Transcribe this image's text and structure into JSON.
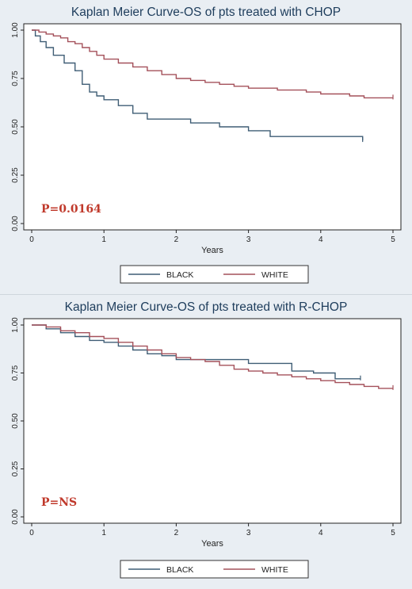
{
  "chart_data": [
    {
      "type": "line",
      "title": "Kaplan Meier Curve-OS of pts treated with CHOP",
      "xlabel": "Years",
      "ylabel": "",
      "xlim": [
        0,
        5
      ],
      "ylim": [
        0,
        1
      ],
      "x_ticks": [
        "0",
        "1",
        "2",
        "3",
        "4",
        "5"
      ],
      "y_ticks": [
        "0.00",
        "0.25",
        "0.50",
        "0.75",
        "1.00"
      ],
      "annotation": "P=0.0164",
      "legend_position": "bottom",
      "grid": false,
      "series": [
        {
          "name": "BLACK",
          "color": "#3f5d75",
          "step": true,
          "x": [
            0,
            0.05,
            0.12,
            0.2,
            0.3,
            0.45,
            0.6,
            0.7,
            0.8,
            0.9,
            1.0,
            1.2,
            1.4,
            1.6,
            2.2,
            2.6,
            3.0,
            3.3,
            3.8,
            4.58
          ],
          "y": [
            1.0,
            0.97,
            0.94,
            0.91,
            0.87,
            0.83,
            0.79,
            0.72,
            0.68,
            0.66,
            0.64,
            0.61,
            0.57,
            0.54,
            0.52,
            0.5,
            0.48,
            0.45,
            0.45,
            0.43
          ]
        },
        {
          "name": "WHITE",
          "color": "#a4505a",
          "step": true,
          "x": [
            0,
            0.1,
            0.2,
            0.3,
            0.4,
            0.5,
            0.6,
            0.7,
            0.8,
            0.9,
            1.0,
            1.2,
            1.4,
            1.6,
            1.8,
            2.0,
            2.2,
            2.4,
            2.6,
            2.8,
            3.0,
            3.2,
            3.4,
            3.6,
            3.8,
            4.0,
            4.2,
            4.4,
            4.6,
            4.8,
            5.0
          ],
          "y": [
            1.0,
            0.99,
            0.98,
            0.97,
            0.96,
            0.94,
            0.93,
            0.91,
            0.89,
            0.87,
            0.85,
            0.83,
            0.81,
            0.79,
            0.77,
            0.75,
            0.74,
            0.73,
            0.72,
            0.71,
            0.7,
            0.7,
            0.69,
            0.69,
            0.68,
            0.67,
            0.67,
            0.66,
            0.65,
            0.65,
            0.65
          ]
        }
      ]
    },
    {
      "type": "line",
      "title": "Kaplan Meier Curve-OS of pts treated with R-CHOP",
      "xlabel": "Years",
      "ylabel": "",
      "xlim": [
        0,
        5
      ],
      "ylim": [
        0,
        1
      ],
      "x_ticks": [
        "0",
        "1",
        "2",
        "3",
        "4",
        "5"
      ],
      "y_ticks": [
        "0.00",
        "0.25",
        "0.50",
        "0.75",
        "1.00"
      ],
      "annotation": "P=NS",
      "legend_position": "bottom",
      "grid": false,
      "series": [
        {
          "name": "BLACK",
          "color": "#3f5d75",
          "step": true,
          "x": [
            0,
            0.2,
            0.4,
            0.6,
            0.8,
            1.0,
            1.2,
            1.4,
            1.6,
            1.8,
            2.0,
            2.4,
            2.8,
            3.0,
            3.2,
            3.6,
            3.9,
            4.2,
            4.55
          ],
          "y": [
            1.0,
            0.98,
            0.96,
            0.94,
            0.92,
            0.91,
            0.89,
            0.87,
            0.85,
            0.84,
            0.82,
            0.82,
            0.82,
            0.8,
            0.8,
            0.76,
            0.75,
            0.72,
            0.72
          ]
        },
        {
          "name": "WHITE",
          "color": "#a4505a",
          "step": true,
          "x": [
            0,
            0.2,
            0.4,
            0.6,
            0.8,
            1.0,
            1.2,
            1.4,
            1.6,
            1.8,
            2.0,
            2.2,
            2.4,
            2.6,
            2.8,
            3.0,
            3.2,
            3.4,
            3.6,
            3.8,
            4.0,
            4.2,
            4.4,
            4.6,
            4.8,
            5.0
          ],
          "y": [
            1.0,
            0.99,
            0.97,
            0.96,
            0.94,
            0.93,
            0.91,
            0.89,
            0.87,
            0.85,
            0.83,
            0.82,
            0.81,
            0.79,
            0.77,
            0.76,
            0.75,
            0.74,
            0.73,
            0.72,
            0.71,
            0.7,
            0.69,
            0.68,
            0.67,
            0.67
          ]
        }
      ]
    }
  ]
}
